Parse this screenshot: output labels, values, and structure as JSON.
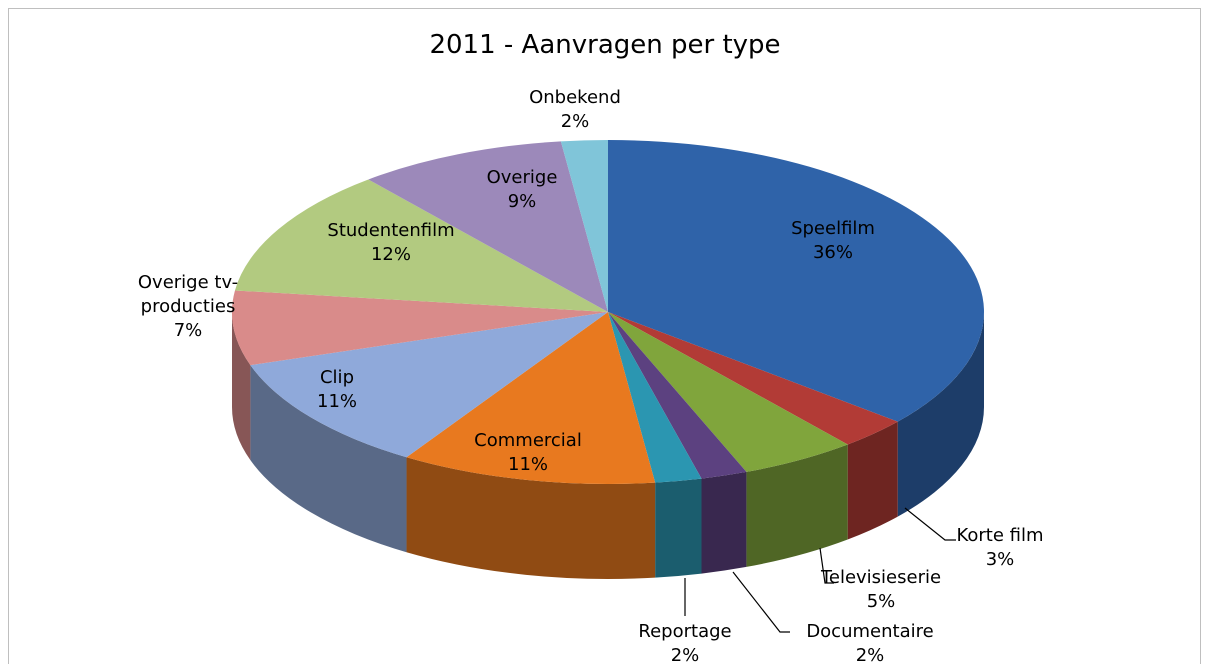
{
  "chart_data": {
    "type": "pie",
    "title": "2011 - Aanvragen per type",
    "categories": [
      "Speelfilm",
      "Korte film",
      "Televisieserie",
      "Documentaire",
      "Reportage",
      "Commercial",
      "Clip",
      "Overige tv-producties",
      "Studentenfilm",
      "Overige",
      "Onbekend"
    ],
    "values": [
      36,
      3,
      5,
      2,
      2,
      11,
      11,
      7,
      12,
      9,
      2
    ],
    "value_labels": [
      "36%",
      "3%",
      "5%",
      "2%",
      "2%",
      "11%",
      "11%",
      "7%",
      "12%",
      "9%",
      "2%"
    ],
    "colors": [
      "#2f63a9",
      "#b23b36",
      "#80a53c",
      "#5c4180",
      "#2b96b1",
      "#e8791f",
      "#8fa9da",
      "#d98b8a",
      "#b2ca80",
      "#9c89ba",
      "#80c5d9"
    ],
    "three_d": true
  }
}
